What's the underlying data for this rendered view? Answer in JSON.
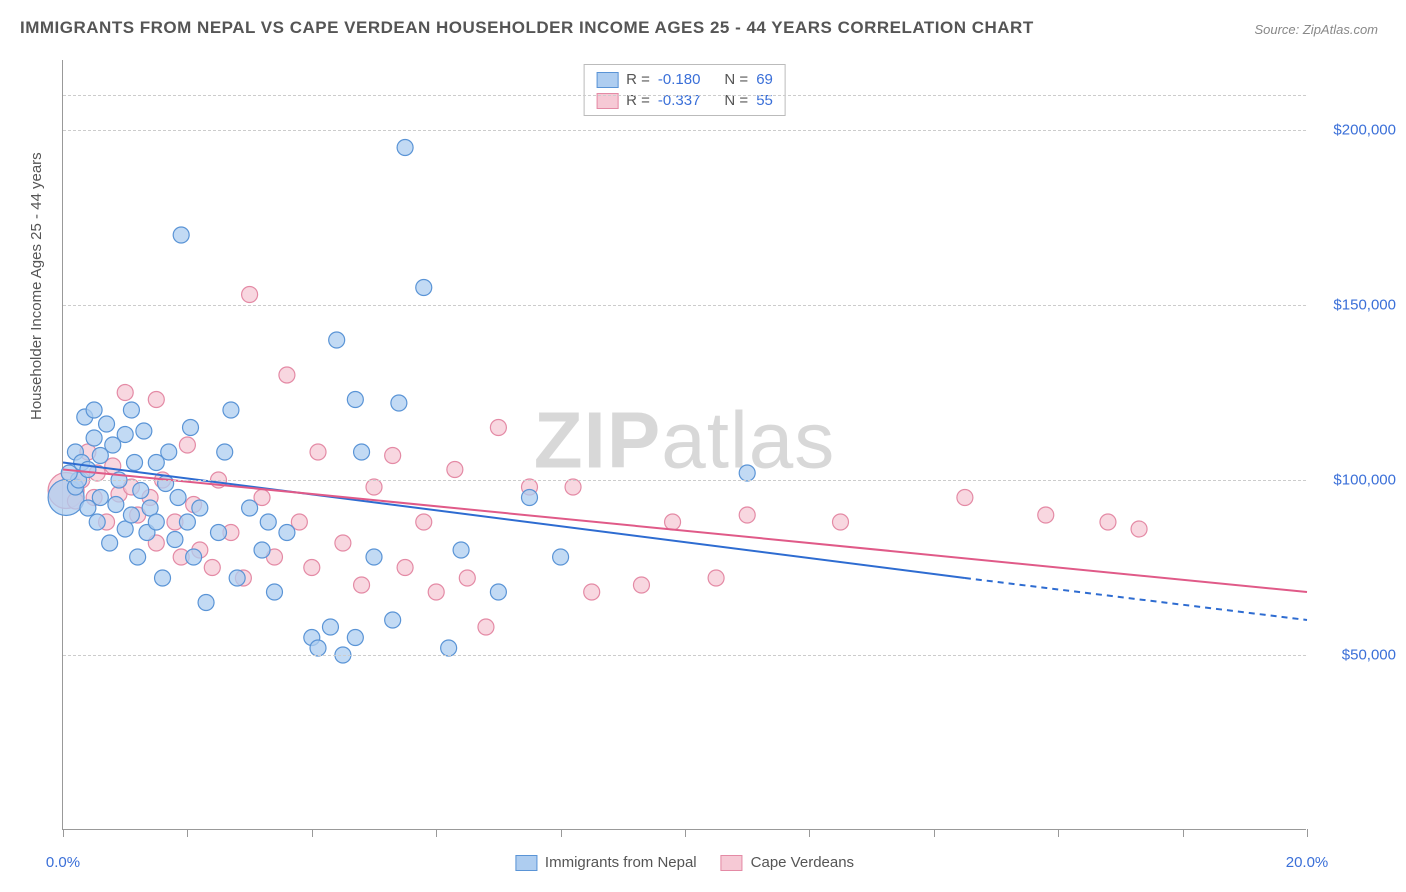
{
  "title": "IMMIGRANTS FROM NEPAL VS CAPE VERDEAN HOUSEHOLDER INCOME AGES 25 - 44 YEARS CORRELATION CHART",
  "source": "Source: ZipAtlas.com",
  "ylabel": "Householder Income Ages 25 - 44 years",
  "watermark_bold": "ZIP",
  "watermark_light": "atlas",
  "chart": {
    "type": "scatter",
    "xlim": [
      0,
      20
    ],
    "ylim": [
      0,
      220000
    ],
    "x_ticks": [
      0,
      2,
      4,
      6,
      8,
      10,
      12,
      14,
      16,
      18,
      20
    ],
    "x_tick_labels_shown": {
      "0": "0.0%",
      "20": "20.0%"
    },
    "y_gridlines": [
      50000,
      100000,
      150000,
      200000
    ],
    "y_tick_labels": {
      "50000": "$50,000",
      "100000": "$100,000",
      "150000": "$150,000",
      "200000": "$200,000"
    },
    "y_grid_top": 210000,
    "background_color": "#ffffff",
    "grid_color": "#cccccc",
    "axis_color": "#999999",
    "label_color": "#3a6fd8",
    "marker_radius": 8,
    "marker_radius_big": 18,
    "marker_stroke_width": 1.2,
    "line_width": 2,
    "series": [
      {
        "name": "Immigrants from Nepal",
        "color_fill": "#aecdf0",
        "color_stroke": "#5a94d6",
        "line_color": "#2e6cd1",
        "r_label": "R =",
        "r_value": "-0.180",
        "n_label": "N =",
        "n_value": "69",
        "regression": {
          "x1": 0,
          "y1": 105000,
          "x2": 14.5,
          "y2": 72000,
          "x2_ext": 20,
          "y2_ext": 60000
        },
        "points": [
          [
            0.05,
            95000,
            18
          ],
          [
            0.2,
            108000,
            8
          ],
          [
            0.2,
            98000,
            8
          ],
          [
            0.25,
            100000,
            8
          ],
          [
            0.3,
            105000,
            8
          ],
          [
            0.35,
            118000,
            8
          ],
          [
            0.4,
            103000,
            8
          ],
          [
            0.4,
            92000,
            8
          ],
          [
            0.5,
            112000,
            8
          ],
          [
            0.5,
            120000,
            8
          ],
          [
            0.55,
            88000,
            8
          ],
          [
            0.6,
            107000,
            8
          ],
          [
            0.6,
            95000,
            8
          ],
          [
            0.7,
            116000,
            8
          ],
          [
            0.75,
            82000,
            8
          ],
          [
            0.8,
            110000,
            8
          ],
          [
            0.85,
            93000,
            8
          ],
          [
            0.9,
            100000,
            8
          ],
          [
            1.0,
            113000,
            8
          ],
          [
            1.0,
            86000,
            8
          ],
          [
            1.1,
            120000,
            8
          ],
          [
            1.1,
            90000,
            8
          ],
          [
            1.15,
            105000,
            8
          ],
          [
            1.2,
            78000,
            8
          ],
          [
            1.25,
            97000,
            8
          ],
          [
            1.3,
            114000,
            8
          ],
          [
            1.35,
            85000,
            8
          ],
          [
            1.4,
            92000,
            8
          ],
          [
            1.5,
            88000,
            8
          ],
          [
            1.5,
            105000,
            8
          ],
          [
            1.6,
            72000,
            8
          ],
          [
            1.65,
            99000,
            8
          ],
          [
            1.7,
            108000,
            8
          ],
          [
            1.8,
            83000,
            8
          ],
          [
            1.85,
            95000,
            8
          ],
          [
            1.9,
            170000,
            8
          ],
          [
            2.0,
            88000,
            8
          ],
          [
            2.05,
            115000,
            8
          ],
          [
            2.1,
            78000,
            8
          ],
          [
            2.2,
            92000,
            8
          ],
          [
            2.3,
            65000,
            8
          ],
          [
            2.5,
            85000,
            8
          ],
          [
            2.6,
            108000,
            8
          ],
          [
            2.7,
            120000,
            8
          ],
          [
            2.8,
            72000,
            8
          ],
          [
            3.0,
            92000,
            8
          ],
          [
            3.2,
            80000,
            8
          ],
          [
            3.3,
            88000,
            8
          ],
          [
            3.4,
            68000,
            8
          ],
          [
            3.6,
            85000,
            8
          ],
          [
            4.0,
            55000,
            8
          ],
          [
            4.1,
            52000,
            8
          ],
          [
            4.3,
            58000,
            8
          ],
          [
            4.4,
            140000,
            8
          ],
          [
            4.5,
            50000,
            8
          ],
          [
            4.7,
            55000,
            8
          ],
          [
            4.7,
            123000,
            8
          ],
          [
            4.8,
            108000,
            8
          ],
          [
            5.0,
            78000,
            8
          ],
          [
            5.3,
            60000,
            8
          ],
          [
            5.4,
            122000,
            8
          ],
          [
            5.5,
            195000,
            8
          ],
          [
            5.8,
            155000,
            8
          ],
          [
            6.2,
            52000,
            8
          ],
          [
            6.4,
            80000,
            8
          ],
          [
            7.0,
            68000,
            8
          ],
          [
            7.5,
            95000,
            8
          ],
          [
            8.0,
            78000,
            8
          ],
          [
            11.0,
            102000,
            8
          ],
          [
            0.1,
            102000,
            8
          ]
        ]
      },
      {
        "name": "Cape Verdeans",
        "color_fill": "#f6c9d5",
        "color_stroke": "#e48aa5",
        "line_color": "#e05a88",
        "r_label": "R =",
        "r_value": "-0.337",
        "n_label": "N =",
        "n_value": "55",
        "regression": {
          "x1": 0,
          "y1": 103000,
          "x2": 20,
          "y2": 68000,
          "x2_ext": 20,
          "y2_ext": 68000
        },
        "points": [
          [
            0.05,
            97000,
            18
          ],
          [
            0.3,
            100000,
            8
          ],
          [
            0.4,
            108000,
            8
          ],
          [
            0.5,
            95000,
            8
          ],
          [
            0.55,
            102000,
            8
          ],
          [
            0.7,
            88000,
            8
          ],
          [
            0.8,
            104000,
            8
          ],
          [
            0.9,
            96000,
            8
          ],
          [
            1.0,
            125000,
            8
          ],
          [
            1.1,
            98000,
            8
          ],
          [
            1.2,
            90000,
            8
          ],
          [
            1.4,
            95000,
            8
          ],
          [
            1.5,
            82000,
            8
          ],
          [
            1.5,
            123000,
            8
          ],
          [
            1.6,
            100000,
            8
          ],
          [
            1.8,
            88000,
            8
          ],
          [
            1.9,
            78000,
            8
          ],
          [
            2.0,
            110000,
            8
          ],
          [
            2.1,
            93000,
            8
          ],
          [
            2.2,
            80000,
            8
          ],
          [
            2.4,
            75000,
            8
          ],
          [
            2.5,
            100000,
            8
          ],
          [
            2.7,
            85000,
            8
          ],
          [
            2.9,
            72000,
            8
          ],
          [
            3.0,
            153000,
            8
          ],
          [
            3.2,
            95000,
            8
          ],
          [
            3.4,
            78000,
            8
          ],
          [
            3.6,
            130000,
            8
          ],
          [
            3.8,
            88000,
            8
          ],
          [
            4.0,
            75000,
            8
          ],
          [
            4.1,
            108000,
            8
          ],
          [
            4.5,
            82000,
            8
          ],
          [
            4.8,
            70000,
            8
          ],
          [
            5.0,
            98000,
            8
          ],
          [
            5.3,
            107000,
            8
          ],
          [
            5.5,
            75000,
            8
          ],
          [
            5.8,
            88000,
            8
          ],
          [
            6.0,
            68000,
            8
          ],
          [
            6.3,
            103000,
            8
          ],
          [
            6.5,
            72000,
            8
          ],
          [
            6.8,
            58000,
            8
          ],
          [
            7.0,
            115000,
            8
          ],
          [
            7.5,
            98000,
            8
          ],
          [
            8.2,
            98000,
            8
          ],
          [
            8.5,
            68000,
            8
          ],
          [
            9.3,
            70000,
            8
          ],
          [
            9.8,
            88000,
            8
          ],
          [
            10.5,
            72000,
            8
          ],
          [
            11.0,
            90000,
            8
          ],
          [
            12.5,
            88000,
            8
          ],
          [
            14.5,
            95000,
            8
          ],
          [
            15.8,
            90000,
            8
          ],
          [
            16.8,
            88000,
            8
          ],
          [
            17.3,
            86000,
            8
          ],
          [
            0.2,
            94000,
            8
          ]
        ]
      }
    ]
  },
  "legend_bottom": [
    {
      "label": "Immigrants from Nepal",
      "fill": "#aecdf0",
      "stroke": "#5a94d6"
    },
    {
      "label": "Cape Verdeans",
      "fill": "#f6c9d5",
      "stroke": "#e48aa5"
    }
  ]
}
